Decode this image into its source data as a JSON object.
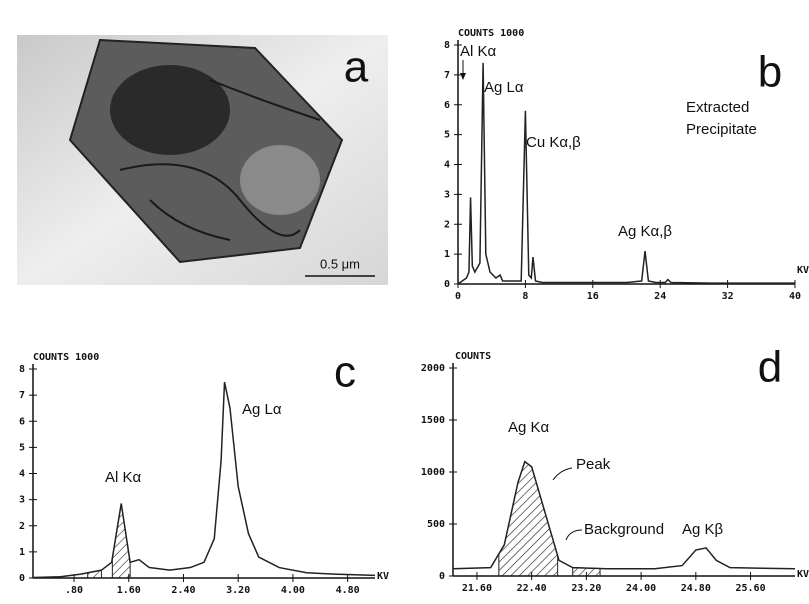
{
  "panel_a": {
    "label": "a",
    "scale_bar": "0.5 μm"
  },
  "chart_data": [
    {
      "type": "line",
      "panel": "b",
      "ylabel": "COUNTS 1000",
      "xlabel": "KV",
      "annotations": [
        "Al Kα",
        "Ag Lα",
        "Cu Kα,β",
        "Ag Kα,β",
        "Extracted",
        "Precipitate"
      ],
      "color": "#222",
      "x": [
        0,
        0.5,
        1.0,
        1.3,
        1.49,
        1.7,
        2.0,
        2.6,
        2.98,
        3.3,
        3.8,
        4.5,
        5.0,
        5.3,
        6,
        7.5,
        8.0,
        8.4,
        8.7,
        8.9,
        9.2,
        10,
        14,
        20,
        21.8,
        22.2,
        22.6,
        23.5,
        24.6,
        24.9,
        25.3,
        30,
        40
      ],
      "values": [
        0,
        0.1,
        0.2,
        0.4,
        2.9,
        0.6,
        0.4,
        0.7,
        7.4,
        1.0,
        0.4,
        0.2,
        0.3,
        0.1,
        0.1,
        0.1,
        5.8,
        0.3,
        0.2,
        0.9,
        0.1,
        0.05,
        0.05,
        0.05,
        0.1,
        1.1,
        0.1,
        0.05,
        0.05,
        0.15,
        0.05,
        0.03,
        0.03
      ],
      "xlim": [
        0,
        40
      ],
      "xticks": [
        0,
        8,
        16,
        24,
        32,
        40
      ],
      "ylim": [
        0,
        8
      ],
      "yticks": [
        0,
        1,
        2,
        3,
        4,
        5,
        6,
        7,
        8
      ]
    },
    {
      "type": "line",
      "panel": "c",
      "ylabel": "COUNTS 1000",
      "xlabel": "KV",
      "annotations": [
        "Al Kα",
        "Ag Lα"
      ],
      "color": "#222",
      "x": [
        0.2,
        0.6,
        0.9,
        1.2,
        1.35,
        1.49,
        1.62,
        1.75,
        1.9,
        2.2,
        2.5,
        2.7,
        2.85,
        2.95,
        3.0,
        3.08,
        3.2,
        3.35,
        3.5,
        3.8,
        4.2,
        4.6,
        5.2
      ],
      "values": [
        0.02,
        0.05,
        0.15,
        0.3,
        0.6,
        2.85,
        0.6,
        0.7,
        0.4,
        0.3,
        0.4,
        0.6,
        1.5,
        4.5,
        7.5,
        6.5,
        3.5,
        1.7,
        0.8,
        0.4,
        0.2,
        0.15,
        0.1
      ],
      "shaded_ranges": [
        [
          1.0,
          1.2
        ],
        [
          1.36,
          1.62
        ]
      ],
      "xlim": [
        0.2,
        5.2
      ],
      "xticks": [
        {
          "value": 0.8,
          "label": ".80"
        },
        {
          "value": 1.6,
          "label": "1.60"
        },
        {
          "value": 2.4,
          "label": "2.40"
        },
        {
          "value": 3.2,
          "label": "3.20"
        },
        {
          "value": 4.0,
          "label": "4.00"
        },
        {
          "value": 4.8,
          "label": "4.80"
        }
      ],
      "ylim": [
        0,
        8
      ],
      "yticks": [
        0,
        1,
        2,
        3,
        4,
        5,
        6,
        7,
        8
      ]
    },
    {
      "type": "line",
      "panel": "d",
      "ylabel": "COUNTS",
      "xlabel": "KV",
      "annotations": [
        "Ag Kα",
        "Peak",
        "Background",
        "Ag Kβ"
      ],
      "color": "#222",
      "x": [
        21.25,
        21.8,
        22.0,
        22.2,
        22.3,
        22.4,
        22.6,
        22.8,
        23.0,
        23.5,
        24.2,
        24.6,
        24.8,
        24.95,
        25.1,
        25.3,
        26.25
      ],
      "values": [
        70,
        80,
        300,
        900,
        1100,
        1050,
        600,
        150,
        80,
        70,
        70,
        100,
        250,
        270,
        150,
        80,
        70
      ],
      "shaded_ranges": [
        [
          21.92,
          22.78
        ],
        [
          23.0,
          23.4
        ]
      ],
      "xlim": [
        21.25,
        26.25
      ],
      "xticks": [
        {
          "value": 21.6,
          "label": "21.60"
        },
        {
          "value": 22.4,
          "label": "22.40"
        },
        {
          "value": 23.2,
          "label": "23.20"
        },
        {
          "value": 24.0,
          "label": "24.00"
        },
        {
          "value": 24.8,
          "label": "24.80"
        },
        {
          "value": 25.6,
          "label": "25.60"
        }
      ],
      "ylim": [
        0,
        2000
      ],
      "yticks": [
        0,
        500,
        1000,
        1500,
        2000
      ]
    }
  ]
}
